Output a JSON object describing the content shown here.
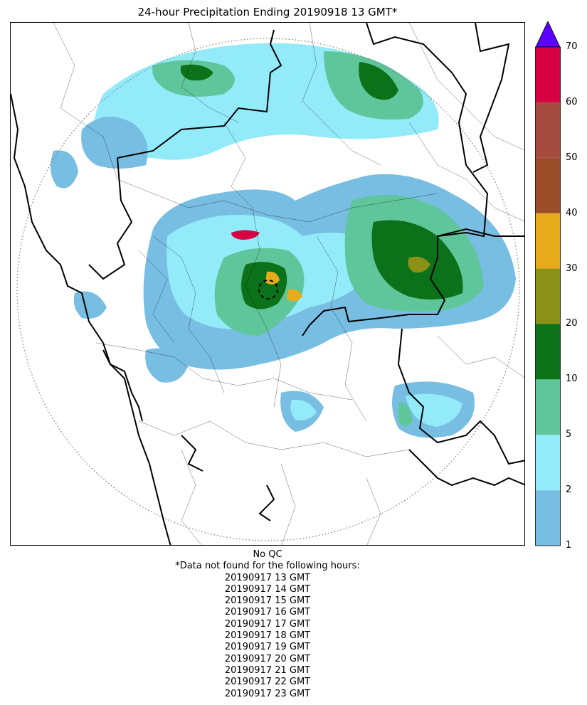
{
  "title": "24-hour Precipitation Ending 20190918 13 GMT*",
  "colorbar": {
    "ticks": [
      "1",
      "2",
      "5",
      "10",
      "20",
      "30",
      "40",
      "50",
      "60",
      "70"
    ],
    "colors": [
      "#78bee3",
      "#93ebfa",
      "#5fc69c",
      "#0c7219",
      "#8b9117",
      "#e8ab1b",
      "#9b4d2a",
      "#a44a3e",
      "#d60043"
    ],
    "extend_color": "#5b00ff"
  },
  "map": {
    "radar_range_ring": "dotted",
    "features": [
      "coastline",
      "state-boundaries",
      "district-boundaries",
      "radar-site-ring"
    ]
  },
  "caption": {
    "qc_note": "No QC",
    "missing_header": "*Data not found for the following hours:",
    "missing_hours": [
      "20190917 13 GMT",
      "20190917 14 GMT",
      "20190917 15 GMT",
      "20190917 16 GMT",
      "20190917 17 GMT",
      "20190917 18 GMT",
      "20190917 19 GMT",
      "20190917 20 GMT",
      "20190917 21 GMT",
      "20190917 22 GMT",
      "20190917 23 GMT"
    ]
  }
}
